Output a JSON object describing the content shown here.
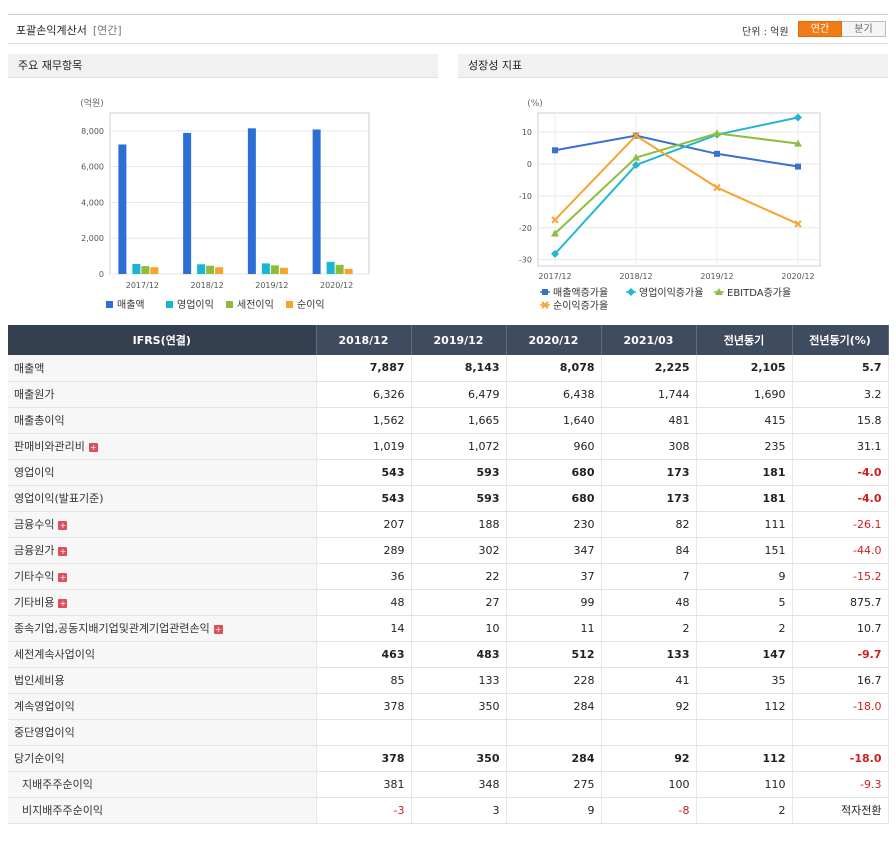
{
  "header": {
    "title": "포괄손익계산서",
    "subtitle": "[연간]",
    "unit_label": "단위 : 억원",
    "tabs": [
      "연간",
      "분기"
    ]
  },
  "panels": {
    "left_title": "주요 재무항목",
    "right_title": "성장성 지표"
  },
  "chart_data": [
    {
      "type": "bar",
      "ylabel": "(억원)",
      "categories": [
        "2017/12",
        "2018/12",
        "2019/12",
        "2020/12"
      ],
      "ylim": [
        0,
        9000
      ],
      "yticks": [
        0,
        2000,
        4000,
        6000,
        8000
      ],
      "ytick_labels": [
        "0",
        "2,000",
        "4,000",
        "6,000",
        "8,000"
      ],
      "grid": true,
      "legend": "bottom",
      "series": [
        {
          "name": "매출액",
          "color": "#2c6fd6",
          "values": [
            7240,
            7887,
            8143,
            8078
          ]
        },
        {
          "name": "영업이익",
          "color": "#1bb5d4",
          "values": [
            560,
            543,
            593,
            680
          ]
        },
        {
          "name": "세전이익",
          "color": "#8fbc3c",
          "values": [
            440,
            463,
            483,
            512
          ]
        },
        {
          "name": "순이익",
          "color": "#f4a52a",
          "values": [
            380,
            378,
            350,
            284
          ]
        }
      ]
    },
    {
      "type": "line",
      "ylabel": "(%)",
      "categories": [
        "2017/12",
        "2018/12",
        "2019/12",
        "2020/12"
      ],
      "ylim": [
        -32,
        16
      ],
      "yticks": [
        -30,
        -20,
        -10,
        0,
        10
      ],
      "grid": true,
      "legend": "bottom",
      "series": [
        {
          "name": "매출액증가율",
          "color": "#3a6fd0",
          "marker": "square",
          "values": [
            4.3,
            8.9,
            3.2,
            -0.8
          ]
        },
        {
          "name": "영업이익증가율",
          "color": "#1fb8d0",
          "marker": "diamond",
          "values": [
            -28.2,
            -0.3,
            9.2,
            14.6
          ]
        },
        {
          "name": "EBITDA증가율",
          "color": "#8cbf3f",
          "marker": "triangle",
          "values": [
            -21.8,
            2.0,
            9.6,
            6.4
          ]
        },
        {
          "name": "순이익증가율",
          "color": "#f5a530",
          "marker": "x",
          "values": [
            -17.5,
            8.9,
            -7.4,
            -18.8
          ]
        }
      ]
    }
  ],
  "table": {
    "columns": [
      "IFRS(연결)",
      "2018/12",
      "2019/12",
      "2020/12",
      "2021/03",
      "전년동기",
      "전년동기(%)"
    ],
    "rows": [
      {
        "label": "매출액",
        "values": [
          "7,887",
          "8,143",
          "8,078",
          "2,225",
          "2,105",
          "5.7"
        ],
        "bold": true,
        "plus": false,
        "indent": false,
        "neg_pct": false
      },
      {
        "label": "매출원가",
        "values": [
          "6,326",
          "6,479",
          "6,438",
          "1,744",
          "1,690",
          "3.2"
        ],
        "bold": false,
        "plus": false,
        "indent": false,
        "neg_pct": false
      },
      {
        "label": "매출총이익",
        "values": [
          "1,562",
          "1,665",
          "1,640",
          "481",
          "415",
          "15.8"
        ],
        "bold": false,
        "plus": false,
        "indent": false,
        "neg_pct": false
      },
      {
        "label": "판매비와관리비",
        "values": [
          "1,019",
          "1,072",
          "960",
          "308",
          "235",
          "31.1"
        ],
        "bold": false,
        "plus": true,
        "indent": false,
        "neg_pct": false
      },
      {
        "label": "영업이익",
        "values": [
          "543",
          "593",
          "680",
          "173",
          "181",
          "-4.0"
        ],
        "bold": true,
        "plus": false,
        "indent": false,
        "neg_pct": true
      },
      {
        "label": "영업이익(발표기준)",
        "values": [
          "543",
          "593",
          "680",
          "173",
          "181",
          "-4.0"
        ],
        "bold": true,
        "plus": false,
        "indent": false,
        "neg_pct": true
      },
      {
        "label": "금융수익",
        "values": [
          "207",
          "188",
          "230",
          "82",
          "111",
          "-26.1"
        ],
        "bold": false,
        "plus": true,
        "indent": false,
        "neg_pct": true
      },
      {
        "label": "금융원가",
        "values": [
          "289",
          "302",
          "347",
          "84",
          "151",
          "-44.0"
        ],
        "bold": false,
        "plus": true,
        "indent": false,
        "neg_pct": true
      },
      {
        "label": "기타수익",
        "values": [
          "36",
          "22",
          "37",
          "7",
          "9",
          "-15.2"
        ],
        "bold": false,
        "plus": true,
        "indent": false,
        "neg_pct": true
      },
      {
        "label": "기타비용",
        "values": [
          "48",
          "27",
          "99",
          "48",
          "5",
          "875.7"
        ],
        "bold": false,
        "plus": true,
        "indent": false,
        "neg_pct": false
      },
      {
        "label": "종속기업,공동지배기업및관계기업관련손익",
        "values": [
          "14",
          "10",
          "11",
          "2",
          "2",
          "10.7"
        ],
        "bold": false,
        "plus": true,
        "indent": false,
        "neg_pct": false
      },
      {
        "label": "세전계속사업이익",
        "values": [
          "463",
          "483",
          "512",
          "133",
          "147",
          "-9.7"
        ],
        "bold": true,
        "plus": false,
        "indent": false,
        "neg_pct": true
      },
      {
        "label": "법인세비용",
        "values": [
          "85",
          "133",
          "228",
          "41",
          "35",
          "16.7"
        ],
        "bold": false,
        "plus": false,
        "indent": false,
        "neg_pct": false
      },
      {
        "label": "계속영업이익",
        "values": [
          "378",
          "350",
          "284",
          "92",
          "112",
          "-18.0"
        ],
        "bold": false,
        "plus": false,
        "indent": false,
        "neg_pct": true
      },
      {
        "label": "중단영업이익",
        "values": [
          "",
          "",
          "",
          "",
          "",
          ""
        ],
        "bold": false,
        "plus": false,
        "indent": false,
        "neg_pct": false
      },
      {
        "label": "당기순이익",
        "values": [
          "378",
          "350",
          "284",
          "92",
          "112",
          "-18.0"
        ],
        "bold": true,
        "plus": false,
        "indent": false,
        "neg_pct": true
      },
      {
        "label": "지배주주순이익",
        "values": [
          "381",
          "348",
          "275",
          "100",
          "110",
          "-9.3"
        ],
        "bold": false,
        "plus": false,
        "indent": true,
        "neg_pct": true
      },
      {
        "label": "비지배주주순이익",
        "values": [
          "-3",
          "3",
          "9",
          "-8",
          "2",
          "적자전환"
        ],
        "bold": false,
        "plus": false,
        "indent": true,
        "neg_pct": false
      }
    ]
  }
}
